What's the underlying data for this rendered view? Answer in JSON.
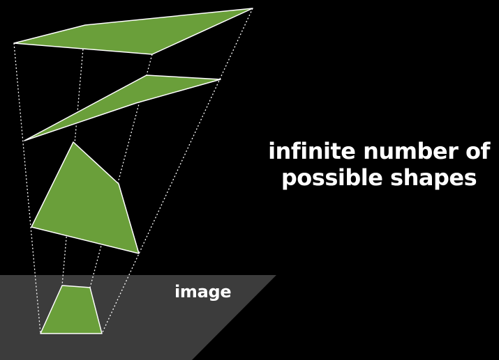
{
  "caption": {
    "line1": "infinite number of",
    "line2": "possible shapes"
  },
  "image_plane": {
    "label": "image"
  },
  "colors": {
    "background": "#000000",
    "shape_fill": "#6a9f3a",
    "shape_stroke": "#ffffff",
    "image_plane": "#3c3c3c",
    "text": "#ffffff",
    "projection_lines": "#ffffff"
  }
}
